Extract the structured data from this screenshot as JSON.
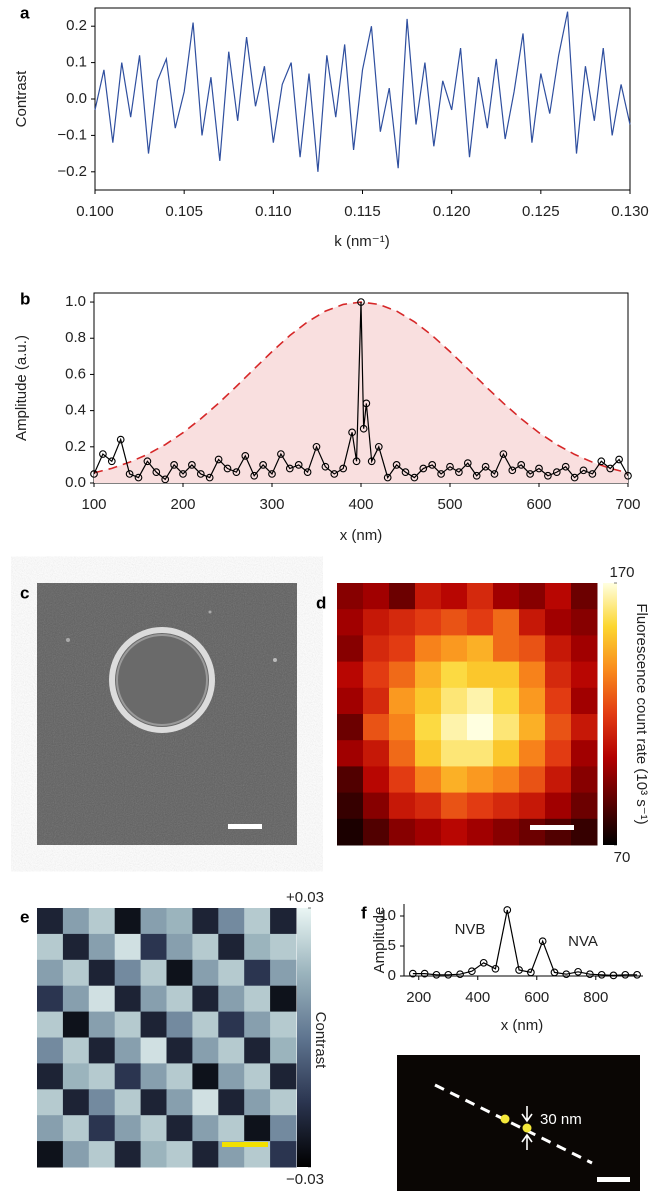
{
  "chart_data": [
    {
      "type": "line",
      "panel": "a",
      "xlabel": "k (nm⁻¹)",
      "ylabel": "Contrast",
      "color": "#2f4f9f",
      "x": [
        0.1,
        0.1005,
        0.101,
        0.1015,
        0.102,
        0.1025,
        0.103,
        0.1035,
        0.104,
        0.1045,
        0.105,
        0.1055,
        0.106,
        0.1065,
        0.107,
        0.1075,
        0.108,
        0.1085,
        0.109,
        0.1095,
        0.11,
        0.1105,
        0.111,
        0.1115,
        0.112,
        0.1125,
        0.113,
        0.1135,
        0.114,
        0.1145,
        0.115,
        0.1155,
        0.116,
        0.1165,
        0.117,
        0.1175,
        0.118,
        0.1185,
        0.119,
        0.1195,
        0.12,
        0.1205,
        0.121,
        0.1215,
        0.122,
        0.1225,
        0.123,
        0.1235,
        0.124,
        0.1245,
        0.125,
        0.1255,
        0.126,
        0.1265,
        0.127,
        0.1275,
        0.128,
        0.1285,
        0.129,
        0.1295,
        0.13
      ],
      "values": [
        -0.03,
        0.08,
        -0.12,
        0.1,
        -0.05,
        0.12,
        -0.15,
        0.05,
        0.11,
        -0.08,
        0.02,
        0.21,
        -0.1,
        0.06,
        -0.17,
        0.13,
        -0.06,
        0.17,
        -0.02,
        0.09,
        -0.12,
        0.04,
        0.1,
        -0.16,
        0.07,
        -0.2,
        0.12,
        -0.05,
        0.15,
        -0.14,
        0.08,
        0.2,
        -0.09,
        0.03,
        -0.19,
        0.22,
        -0.07,
        0.1,
        -0.13,
        0.05,
        -0.03,
        0.14,
        -0.16,
        0.06,
        -0.08,
        0.11,
        -0.11,
        0.02,
        0.18,
        -0.12,
        0.07,
        -0.04,
        0.12,
        0.24,
        -0.15,
        0.09,
        -0.06,
        0.14,
        -0.1,
        0.04,
        -0.07
      ],
      "xlim": [
        0.1,
        0.13
      ],
      "xticks": [
        {
          "value": 0.1,
          "label": "0.100"
        },
        0.105,
        {
          "value": 0.11,
          "label": "0.110"
        },
        0.115,
        {
          "value": 0.12,
          "label": "0.120"
        },
        0.125,
        {
          "value": 0.13,
          "label": "0.130"
        }
      ],
      "ylim": [
        -0.25,
        0.25
      ],
      "yticks": [
        {
          "value": -0.2,
          "label": "−0.2"
        },
        {
          "value": -0.1,
          "label": "−0.1"
        },
        {
          "value": 0,
          "label": "0.0"
        },
        0.1,
        0.2
      ]
    },
    {
      "type": "line",
      "panel": "b",
      "xlabel": "x (nm)",
      "ylabel": "Amplitude (a.u.)",
      "series": [
        {
          "color": "#d62728",
          "fill": "#f9dfdf",
          "dashed": true,
          "x": [
            100,
            120,
            140,
            160,
            180,
            200,
            220,
            240,
            260,
            280,
            300,
            320,
            340,
            360,
            380,
            400,
            420,
            440,
            460,
            480,
            500,
            520,
            540,
            560,
            580,
            600,
            620,
            640,
            660,
            680,
            700
          ],
          "values": [
            0.056,
            0.081,
            0.115,
            0.158,
            0.212,
            0.278,
            0.355,
            0.441,
            0.534,
            0.631,
            0.726,
            0.815,
            0.891,
            0.95,
            0.987,
            1,
            0.987,
            0.95,
            0.891,
            0.815,
            0.726,
            0.631,
            0.534,
            0.441,
            0.355,
            0.278,
            0.212,
            0.158,
            0.115,
            0.081,
            0.056
          ]
        },
        {
          "color": "#000000",
          "marker": "circle",
          "x": [
            100,
            110,
            120,
            130,
            140,
            150,
            160,
            170,
            180,
            190,
            200,
            210,
            220,
            230,
            240,
            250,
            260,
            270,
            280,
            290,
            300,
            310,
            320,
            330,
            340,
            350,
            360,
            370,
            380,
            390,
            395,
            400,
            403,
            406,
            412,
            420,
            430,
            440,
            450,
            460,
            470,
            480,
            490,
            500,
            510,
            520,
            530,
            540,
            550,
            560,
            570,
            580,
            590,
            600,
            610,
            620,
            630,
            640,
            650,
            660,
            670,
            680,
            690,
            700
          ],
          "values": [
            0.05,
            0.16,
            0.12,
            0.24,
            0.05,
            0.03,
            0.12,
            0.06,
            0.02,
            0.1,
            0.05,
            0.1,
            0.05,
            0.03,
            0.13,
            0.08,
            0.06,
            0.15,
            0.04,
            0.1,
            0.05,
            0.16,
            0.08,
            0.1,
            0.06,
            0.2,
            0.09,
            0.05,
            0.08,
            0.28,
            0.12,
            1.0,
            0.3,
            0.44,
            0.12,
            0.2,
            0.03,
            0.1,
            0.06,
            0.03,
            0.08,
            0.1,
            0.05,
            0.09,
            0.06,
            0.11,
            0.04,
            0.09,
            0.05,
            0.16,
            0.07,
            0.1,
            0.05,
            0.08,
            0.04,
            0.06,
            0.09,
            0.03,
            0.07,
            0.05,
            0.12,
            0.08,
            0.13,
            0.04
          ]
        }
      ],
      "xlim": [
        100,
        700
      ],
      "xticks": [
        100,
        200,
        300,
        400,
        500,
        600,
        700
      ],
      "ylim": [
        0,
        1.05
      ],
      "yticks": [
        {
          "value": 0,
          "label": "0.0"
        },
        0.2,
        0.4,
        0.6,
        0.8,
        {
          "value": 1,
          "label": "1.0"
        }
      ]
    },
    {
      "type": "heatmap",
      "panel": "d",
      "colorbar_label": "Fluorescence count rate (10³ s⁻¹)",
      "colormap": [
        "#000000",
        "#5a0000",
        "#b30000",
        "#e23b12",
        "#f98a1c",
        "#fcd630",
        "#ffffe0"
      ],
      "clim": [
        70,
        170
      ],
      "cticks": [
        70,
        170
      ],
      "values": [
        [
          95,
          100,
          90,
          110,
          105,
          115,
          100,
          95,
          105,
          90
        ],
        [
          100,
          110,
          115,
          120,
          125,
          120,
          130,
          110,
          100,
          95
        ],
        [
          95,
          115,
          120,
          135,
          140,
          145,
          130,
          125,
          110,
          100
        ],
        [
          105,
          120,
          130,
          145,
          155,
          150,
          150,
          135,
          115,
          105
        ],
        [
          100,
          115,
          140,
          150,
          160,
          165,
          155,
          140,
          120,
          100
        ],
        [
          90,
          125,
          135,
          155,
          165,
          170,
          160,
          145,
          125,
          110
        ],
        [
          100,
          110,
          130,
          150,
          160,
          160,
          150,
          135,
          120,
          100
        ],
        [
          85,
          105,
          120,
          135,
          145,
          140,
          135,
          125,
          110,
          95
        ],
        [
          80,
          95,
          110,
          115,
          125,
          120,
          115,
          110,
          100,
          90
        ],
        [
          75,
          85,
          95,
          100,
          105,
          100,
          95,
          90,
          85,
          80
        ]
      ]
    },
    {
      "type": "heatmap",
      "panel": "e",
      "colorbar_label": "Contrast",
      "colormap": [
        "#000000",
        "#2b3550",
        "#5f7590",
        "#9bb4bd",
        "#eaf6f4"
      ],
      "clim": [
        -0.03,
        0.03
      ],
      "cticks": [
        {
          "value": 0.03,
          "label": "+0.03"
        },
        {
          "value": -0.03,
          "label": "−0.03"
        }
      ],
      "values": [
        [
          -0.02,
          0.01,
          0.02,
          -0.025,
          0.01,
          0.015,
          -0.02,
          0.005,
          0.02,
          -0.02
        ],
        [
          0.02,
          -0.02,
          0.01,
          0.025,
          -0.015,
          0.01,
          0.02,
          -0.02,
          0.015,
          0.02
        ],
        [
          0.01,
          0.02,
          -0.02,
          0.005,
          0.02,
          -0.025,
          0.01,
          0.02,
          -0.015,
          0.01
        ],
        [
          -0.015,
          0.01,
          0.025,
          -0.02,
          0.01,
          0.02,
          -0.02,
          0.01,
          0.02,
          -0.025
        ],
        [
          0.02,
          -0.025,
          0.01,
          0.02,
          -0.02,
          0.005,
          0.02,
          -0.015,
          0.01,
          0.02
        ],
        [
          0.005,
          0.02,
          -0.02,
          0.01,
          0.025,
          -0.02,
          0.01,
          0.02,
          -0.02,
          0.015
        ],
        [
          -0.02,
          0.015,
          0.02,
          -0.015,
          0.01,
          0.02,
          -0.025,
          0.01,
          0.02,
          -0.02
        ],
        [
          0.02,
          -0.02,
          0.005,
          0.02,
          -0.02,
          0.01,
          0.025,
          -0.02,
          0.01,
          0.02
        ],
        [
          0.01,
          0.02,
          -0.015,
          0.01,
          0.02,
          -0.02,
          0.01,
          0.02,
          -0.025,
          0.005
        ],
        [
          -0.025,
          0.01,
          0.02,
          -0.02,
          0.015,
          0.02,
          -0.02,
          0.01,
          0.02,
          -0.015
        ]
      ]
    },
    {
      "type": "line",
      "panel": "f",
      "xlabel": "x (nm)",
      "ylabel": "Amplitude",
      "color": "#000000",
      "marker": "circle",
      "annotations": [
        "NVB",
        "NVA"
      ],
      "x": [
        180,
        220,
        260,
        300,
        340,
        380,
        420,
        460,
        500,
        540,
        580,
        620,
        660,
        700,
        740,
        780,
        820,
        860,
        900,
        940
      ],
      "values": [
        0.4,
        0.4,
        0.2,
        0.2,
        0.3,
        0.8,
        2.2,
        1.2,
        11,
        1.0,
        0.6,
        5.8,
        0.6,
        0.3,
        0.7,
        0.3,
        0.2,
        0.1,
        0.2,
        0.2
      ],
      "xlim": [
        150,
        960
      ],
      "xticks": [
        200,
        400,
        600,
        800
      ],
      "ylim": [
        0,
        12
      ],
      "yticks": [
        0,
        5,
        10
      ]
    }
  ],
  "sem_image": {
    "panel": "c"
  },
  "f_image": {
    "annotation": "30 nm"
  }
}
